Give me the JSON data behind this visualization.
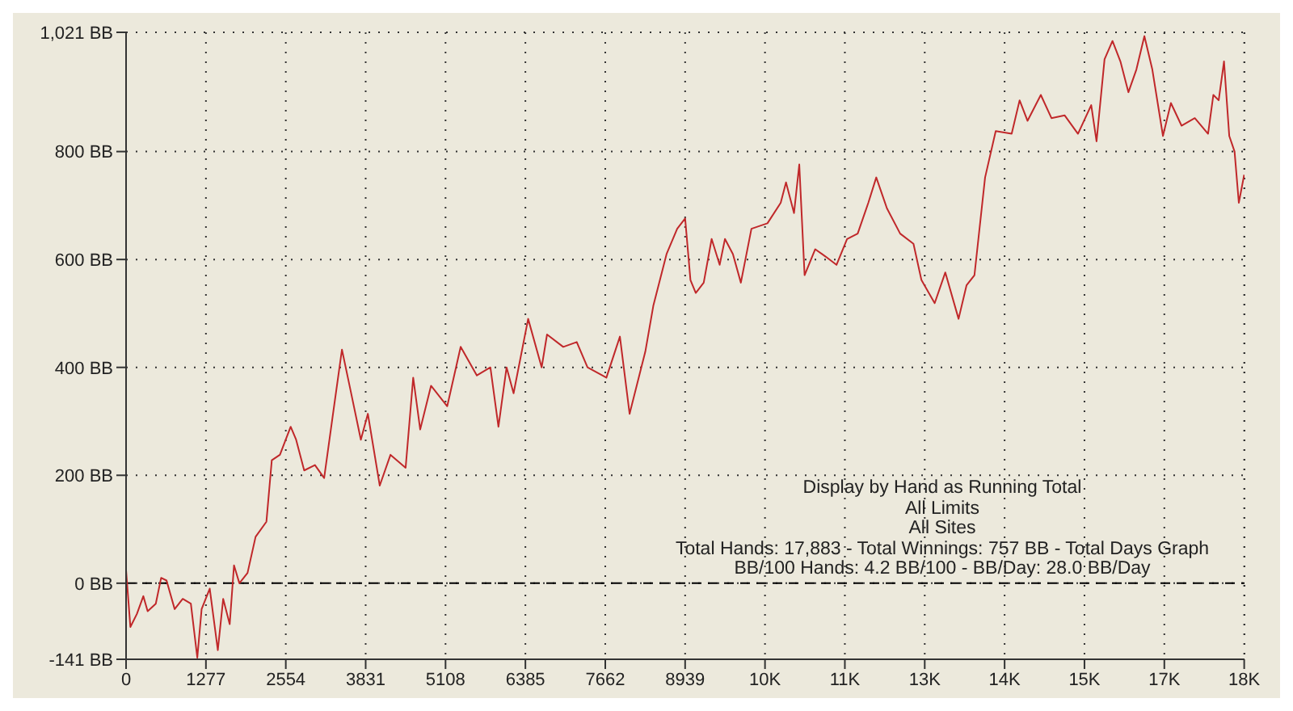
{
  "chart_data": {
    "type": "line",
    "x": [
      0,
      69,
      173,
      276,
      345,
      475,
      561,
      647,
      777,
      906,
      1036,
      1139,
      1208,
      1338,
      1467,
      1553,
      1657,
      1726,
      1812,
      1942,
      2071,
      2244,
      2330,
      2460,
      2632,
      2719,
      2848,
      3020,
      3167,
      3297,
      3452,
      3581,
      3754,
      3866,
      4056,
      4228,
      4470,
      4591,
      4703,
      4876,
      5135,
      5350,
      5609,
      5825,
      5954,
      6084,
      6196,
      6429,
      6645,
      6731,
      6990,
      7206,
      7378,
      7680,
      7896,
      8051,
      8302,
      8430,
      8642,
      8812,
      8939,
      9024,
      9109,
      9236,
      9363,
      9491,
      9576,
      9703,
      9830,
      9999,
      10255,
      10467,
      10552,
      10680,
      10764,
      10849,
      11019,
      11189,
      11359,
      11528,
      11698,
      11868,
      11995,
      12165,
      12377,
      12590,
      12717,
      12929,
      13099,
      13311,
      13438,
      13565,
      13735,
      13905,
      14160,
      14287,
      14414,
      14626,
      14796,
      15008,
      15220,
      15432,
      15517,
      15645,
      15772,
      15899,
      16027,
      16154,
      16282,
      16409,
      16579,
      16706,
      16876,
      17088,
      17300,
      17385,
      17470,
      17555,
      17639,
      17724,
      17792,
      17878
    ],
    "series": [
      {
        "color": "#c0282a",
        "values": [
          24,
          -81,
          -57,
          -24,
          -52,
          -38,
          10,
          5,
          -48,
          -29,
          -38,
          -138,
          -48,
          -10,
          -124,
          -29,
          -76,
          33,
          0,
          19,
          86,
          114,
          228,
          238,
          290,
          266,
          209,
          219,
          195,
          304,
          433,
          362,
          266,
          314,
          181,
          238,
          214,
          381,
          285,
          366,
          328,
          438,
          385,
          400,
          290,
          400,
          352,
          490,
          400,
          461,
          438,
          447,
          400,
          381,
          457,
          314,
          429,
          514,
          610,
          657,
          676,
          562,
          538,
          557,
          638,
          590,
          638,
          610,
          557,
          657,
          667,
          705,
          743,
          686,
          776,
          571,
          619,
          605,
          590,
          638,
          648,
          705,
          752,
          695,
          648,
          629,
          562,
          519,
          576,
          490,
          552,
          571,
          752,
          838,
          833,
          895,
          857,
          905,
          862,
          867,
          833,
          886,
          819,
          971,
          1005,
          967,
          910,
          952,
          1014,
          952,
          829,
          890,
          848,
          862,
          833,
          905,
          895,
          967,
          829,
          800,
          705,
          757
        ]
      }
    ],
    "xlim": [
      0,
      17883
    ],
    "xticks": [
      0,
      1277,
      2554,
      3831,
      5108,
      6385,
      7662,
      8939,
      {
        "value": 10216,
        "label": "10K"
      },
      {
        "value": 11493,
        "label": "11K"
      },
      {
        "value": 12770,
        "label": "13K"
      },
      {
        "value": 14047,
        "label": "14K"
      },
      {
        "value": 15324,
        "label": "15K"
      },
      {
        "value": 16601,
        "label": "17K"
      },
      {
        "value": 17878,
        "label": "18K"
      }
    ],
    "ylim": [
      -141,
      1021
    ],
    "yticks": [
      {
        "value": -141,
        "label": "-141 BB"
      },
      {
        "value": 0,
        "label": "0 BB"
      },
      {
        "value": 200,
        "label": "200 BB"
      },
      {
        "value": 400,
        "label": "400 BB"
      },
      {
        "value": 600,
        "label": "600 BB"
      },
      {
        "value": 800,
        "label": "800 BB"
      },
      {
        "value": 1021,
        "label": "1,021 BB"
      }
    ],
    "grid": true,
    "ref_lines": [
      {
        "axis": "y",
        "value": 0,
        "line_style": "dashed",
        "color": "#000000"
      }
    ],
    "annotations": [
      "Display by Hand as Running Total",
      "All Limits",
      "All Sites",
      "Total Hands: 17,883 - Total Winnings: 757 BB - Total Days Graph",
      "BB/100 Hands: 4.2 BB/100 - BB/Day: 28.0 BB/Day"
    ]
  }
}
